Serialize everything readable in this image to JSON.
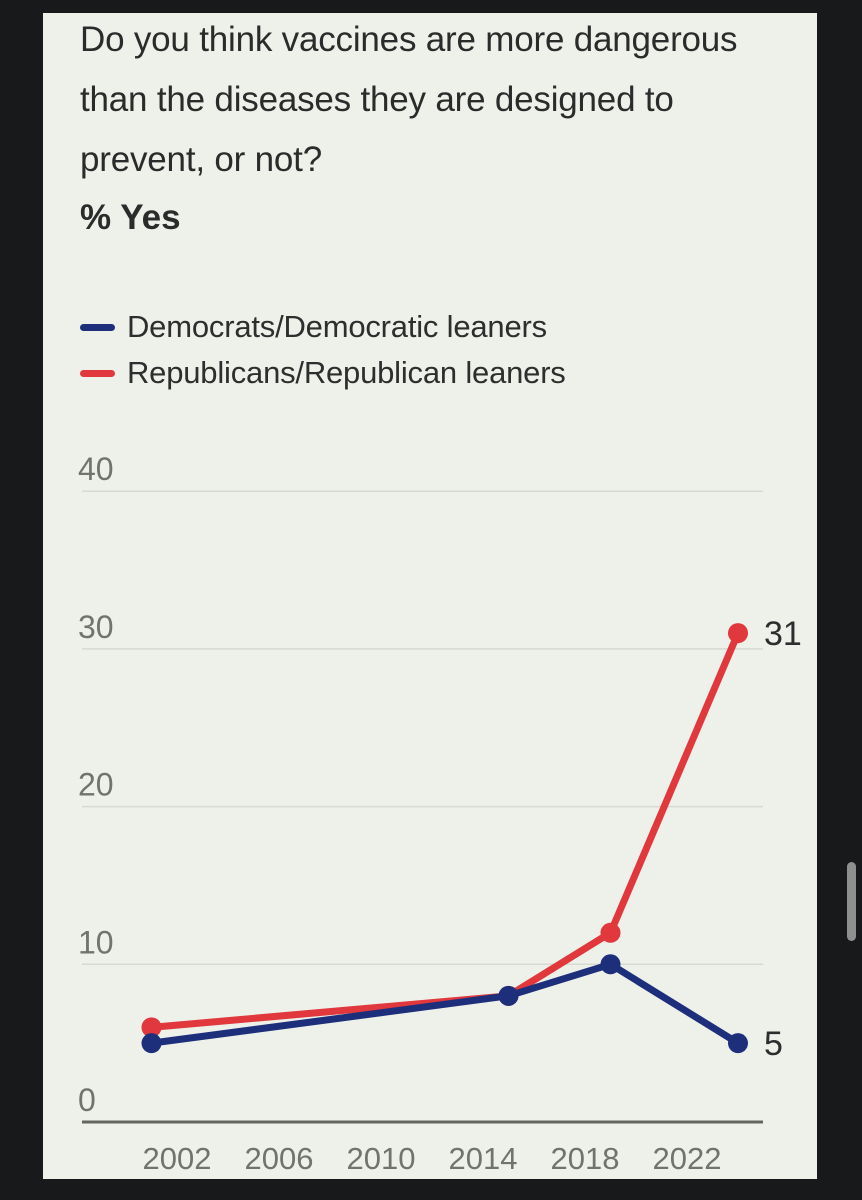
{
  "frame": {
    "background": "#18191a",
    "panel_background": "#edf1ea"
  },
  "title_lines": [
    "Do you think vaccines are more dangerous",
    "than the diseases they are designed to",
    "prevent, or not?"
  ],
  "subtitle": "% Yes",
  "legend": [
    {
      "label": "Democrats/Democratic leaners",
      "color": "#1d2e7b"
    },
    {
      "label": "Republicans/Republican leaners",
      "color": "#e0383c"
    }
  ],
  "scrollbar": {
    "color": "#8e908f"
  },
  "chart_data": {
    "type": "line",
    "title": "Do you think vaccines are more dangerous than the diseases they are designed to prevent, or not?",
    "ylabel": "% Yes",
    "xlabel": "",
    "x": [
      2001,
      2015,
      2019,
      2024
    ],
    "series": [
      {
        "name": "Democrats/Democratic leaners",
        "color": "#1d2e7b",
        "values": [
          5,
          8,
          10,
          5
        ],
        "end_label": "5"
      },
      {
        "name": "Republicans/Republican leaners",
        "color": "#e0383c",
        "values": [
          6,
          8,
          12,
          31
        ],
        "end_label": "31"
      }
    ],
    "xticks": [
      2002,
      2006,
      2010,
      2014,
      2018,
      2022
    ],
    "yticks": [
      0,
      10,
      20,
      30,
      40
    ],
    "ylim": [
      0,
      40
    ],
    "xlim": [
      2000,
      2026
    ],
    "grid": true,
    "legend_position": "top-left",
    "colors": {
      "grid": "#d7dad1",
      "axis": "#63665f",
      "tick_label": "#71746c",
      "end_label": "#2d2d2d"
    }
  }
}
